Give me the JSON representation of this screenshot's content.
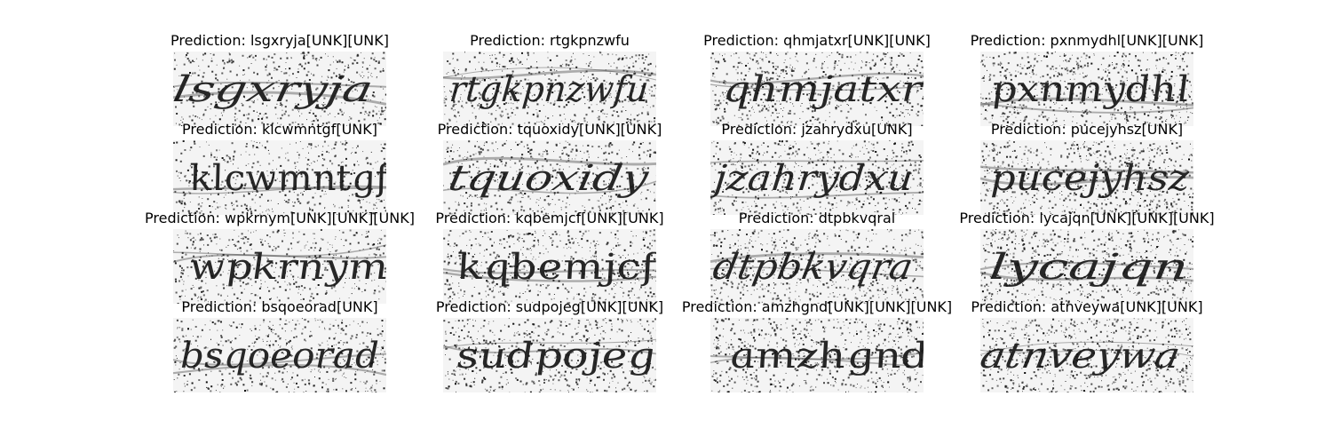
{
  "panels": [
    {
      "title": "Prediction: lsgxryja[UNK][UNK]",
      "image_text": "lsgxryja"
    },
    {
      "title": "Prediction: rtgkpnzwfu",
      "image_text": "rtgkpnzwfu"
    },
    {
      "title": "Prediction: qhmjatxr[UNK][UNK]",
      "image_text": "qhmjatxr"
    },
    {
      "title": "Prediction: pxnmydhl[UNK][UNK]",
      "image_text": "pxnmydhl"
    },
    {
      "title": "Prediction: klcwmntgf[UNK]",
      "image_text": "klcwmntgf"
    },
    {
      "title": "Prediction: tquoxidy[UNK][UNK]",
      "image_text": "tquoxidy"
    },
    {
      "title": "Prediction: jzahrydxu[UNK]",
      "image_text": "jzahrydxu"
    },
    {
      "title": "Prediction: pucejyhsz[UNK]",
      "image_text": "pucejyhsz"
    },
    {
      "title": "Prediction: wpkrnym[UNK][UNK][UNK]",
      "image_text": "wpkrnym"
    },
    {
      "title": "Prediction: kqbemjcf[UNK][UNK]",
      "image_text": "kqbemjcf"
    },
    {
      "title": "Prediction: dtpbkvqral",
      "image_text": "dtpbkvqra"
    },
    {
      "title": "Prediction: lycajqn[UNK][UNK][UNK]",
      "image_text": "lycajqn"
    },
    {
      "title": "Prediction: bsqoeorad[UNK]",
      "image_text": "bsqoeorad"
    },
    {
      "title": "Prediction: sudpojeg[UNK][UNK]",
      "image_text": "sudpojeg"
    },
    {
      "title": "Prediction: amzhgnd[UNK][UNK][UNK]",
      "image_text": "amzhgnd"
    },
    {
      "title": "Prediction: atnveywa[UNK][UNK]",
      "image_text": "atnveywa"
    }
  ]
}
